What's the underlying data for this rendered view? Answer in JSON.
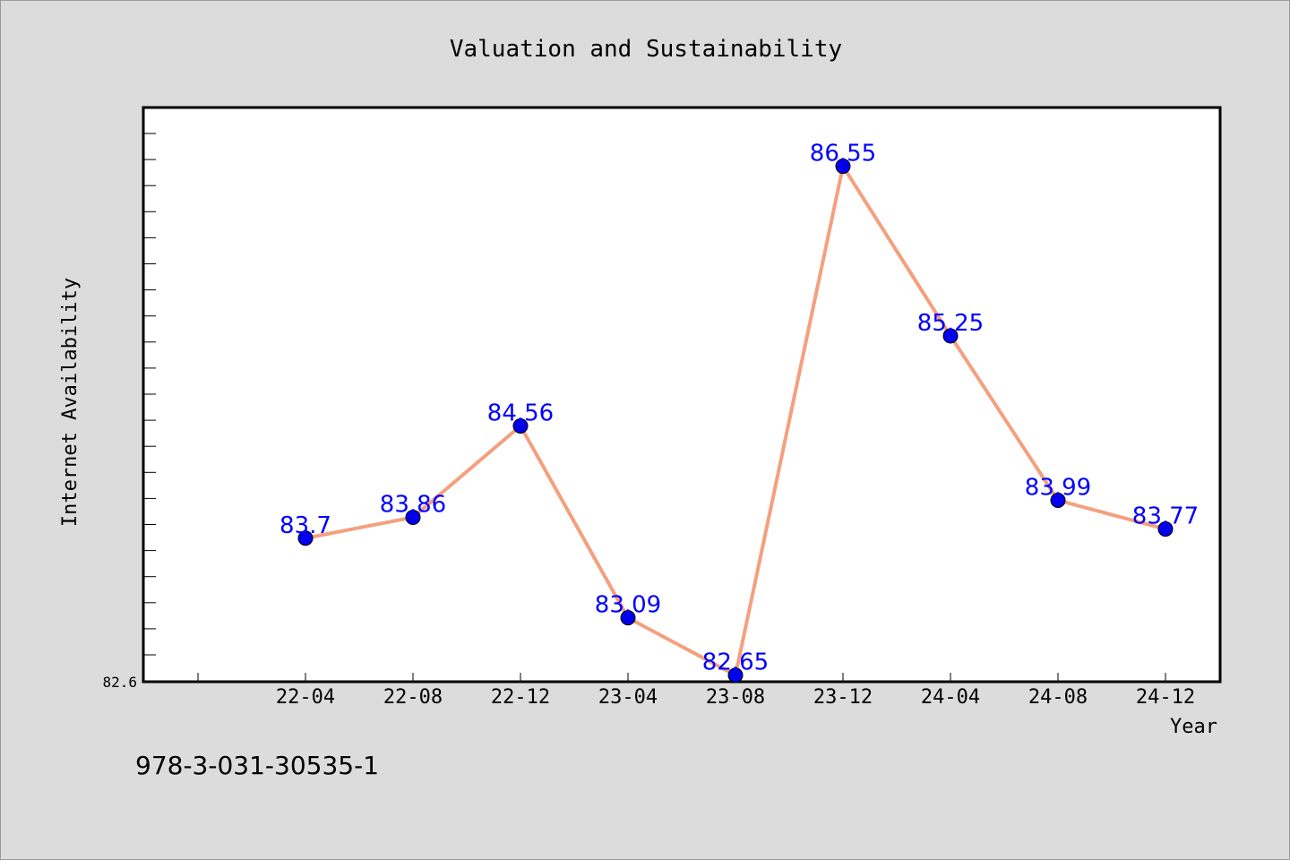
{
  "chart_data": {
    "type": "line",
    "title": "Valuation and Sustainability",
    "xlabel": "Year",
    "ylabel": "Internet Availability",
    "categories": [
      "22-04",
      "22-08",
      "22-12",
      "23-04",
      "23-08",
      "23-12",
      "24-04",
      "24-08",
      "24-12"
    ],
    "values": [
      83.7,
      83.86,
      84.56,
      83.09,
      82.65,
      86.55,
      85.25,
      83.99,
      83.77
    ],
    "data_labels": [
      "83.7",
      "83.86",
      "84.56",
      "83.09",
      "82.65",
      "86.55",
      "85.25",
      "83.99",
      "83.77"
    ],
    "y_tick_labels": [
      "82.6"
    ],
    "ylim": [
      82.6,
      87.0
    ],
    "grid": false,
    "legend": "none",
    "colors": {
      "line": "#f4a07e",
      "marker": "#0000ee",
      "data_label": "#0000ff",
      "plot_background": "#ffffff",
      "page_background": "#dcdcdc"
    }
  },
  "footer_text": "978-3-031-30535-1"
}
